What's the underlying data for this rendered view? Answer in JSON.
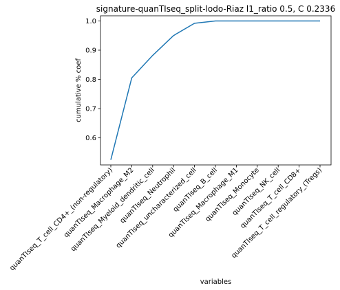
{
  "chart_data": {
    "type": "line",
    "title": "signature-quanTIseq_split-lodo-Riaz l1_ratio 0.5, C 0.2336",
    "xlabel": "variables",
    "ylabel": "cumulative % coef",
    "categories": [
      "quanTIseq_T_cell_CD4+_(non-regulatory)",
      "quanTIseq_Macrophage_M2",
      "quanTIseq_Myeloid_dendritic_cell",
      "quanTIseq_Neutrophil",
      "quanTIseq_uncharacterized_cell",
      "quanTIseq_B_cell",
      "quanTIseq_Macrophage_M1",
      "quanTIseq_Monocyte",
      "quanTIseq_NK_cell",
      "quanTIseq_T_cell_CD8+",
      "quanTIseq_T_cell_regulatory_(Tregs)"
    ],
    "series": [
      {
        "values": [
          0.525,
          0.805,
          0.882,
          0.95,
          0.992,
          1.0,
          1.0,
          1.0,
          1.0,
          1.0,
          1.0
        ],
        "color": "#1f77b4"
      }
    ],
    "yticks": [
      "0.6",
      "0.7",
      "0.8",
      "0.9",
      "1.0"
    ],
    "ylim": [
      0.5075,
      1.0175
    ],
    "grid": false
  }
}
